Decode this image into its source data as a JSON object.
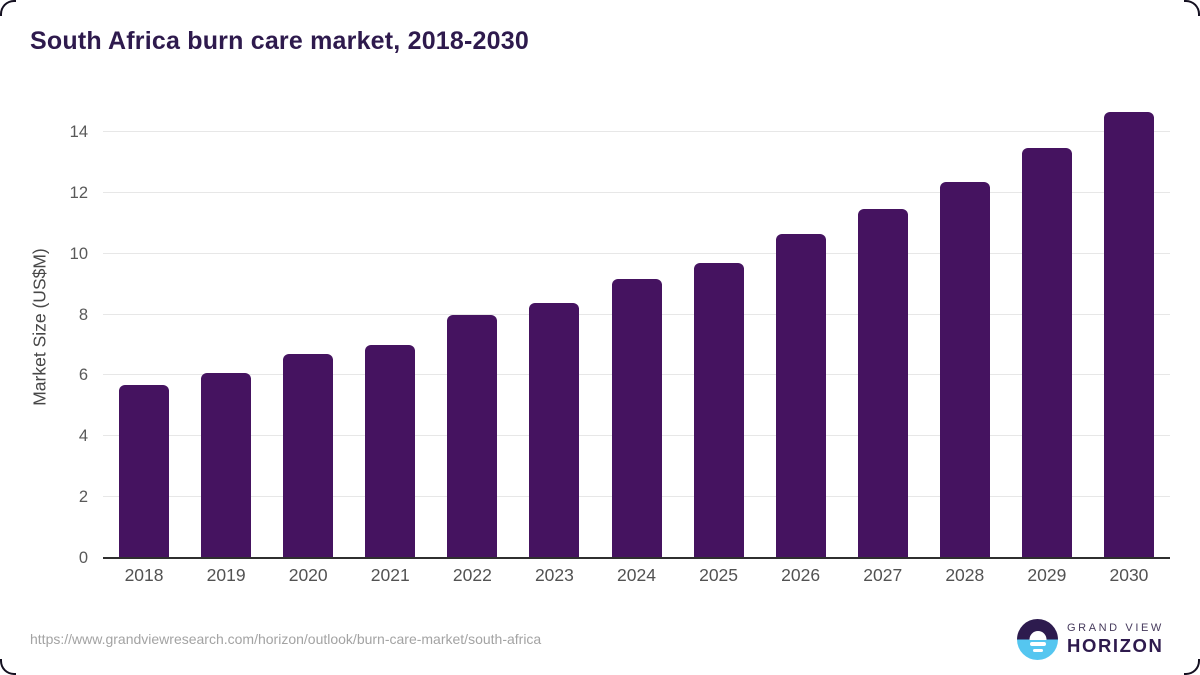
{
  "header": {
    "title": "South Africa burn care market, 2018-2030"
  },
  "chart_data": {
    "type": "bar",
    "title": "South Africa burn care market, 2018-2030",
    "categories": [
      "2018",
      "2019",
      "2020",
      "2021",
      "2022",
      "2023",
      "2024",
      "2025",
      "2026",
      "2027",
      "2028",
      "2029",
      "2030"
    ],
    "values": [
      5.67,
      6.07,
      6.69,
      6.99,
      7.97,
      8.38,
      9.16,
      9.68,
      10.65,
      11.46,
      12.37,
      13.47,
      14.66
    ],
    "xlabel": "",
    "ylabel": "Market Size (US$M)",
    "ylim": [
      0,
      15.05
    ],
    "yticks": [
      0,
      2,
      4,
      6,
      8,
      10,
      12,
      14
    ],
    "grid": "horizontal",
    "legend": "none",
    "bar_color": "#451360"
  },
  "footer": {
    "source_url": "https://www.grandviewresearch.com/horizon/outlook/burn-care-market/south-africa",
    "logo": {
      "line1": "GRAND VIEW",
      "line2": "HORIZON"
    }
  },
  "colors": {
    "title_text": "#2e1a4d",
    "bar": "#451360",
    "gridline": "#e7e7e7",
    "axis_line": "#2f2f2f",
    "tick_label": "#595959",
    "url_text": "#a3a3a3",
    "logo_purple": "#2d1b4e",
    "logo_blue": "#55c6f0"
  }
}
